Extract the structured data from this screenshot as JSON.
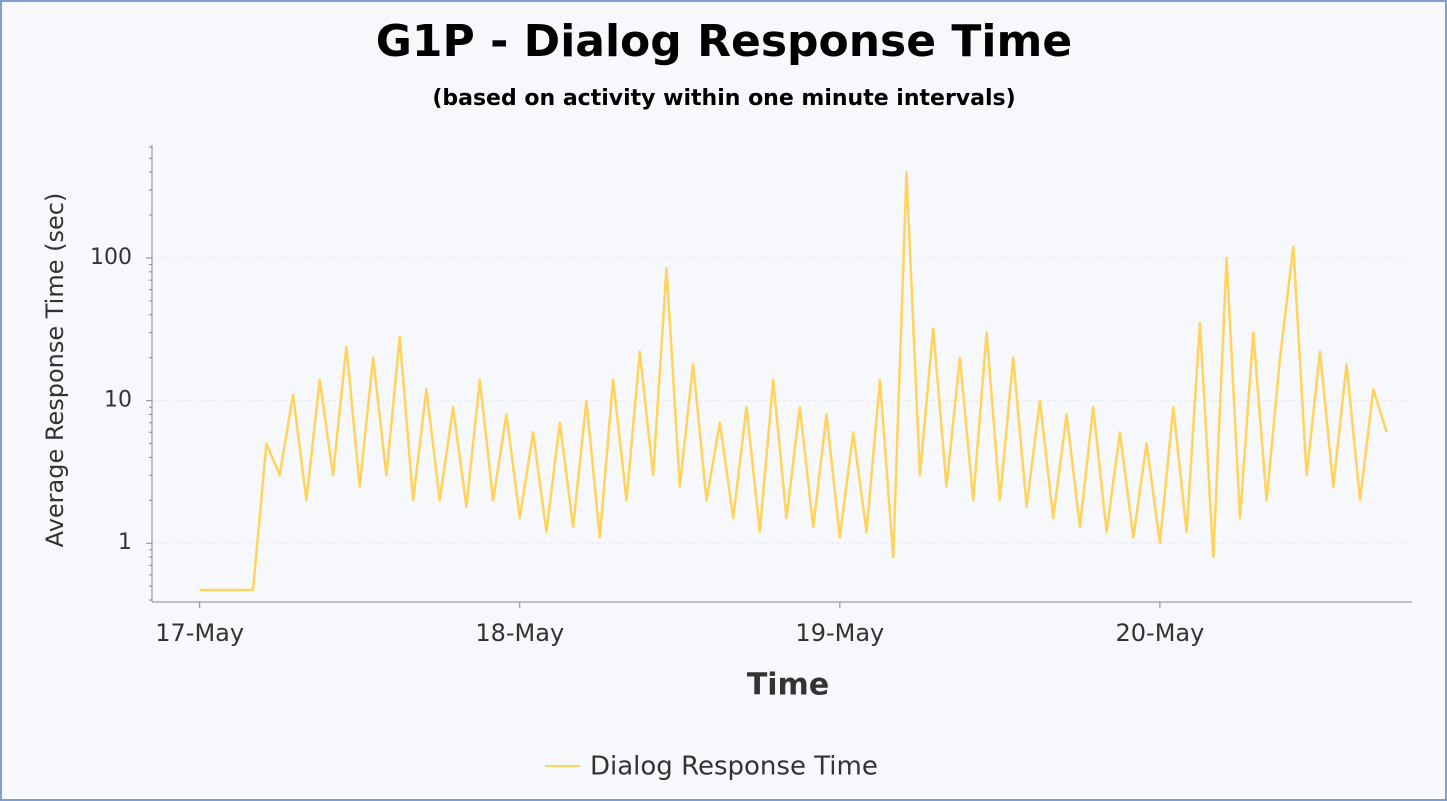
{
  "chart_data": {
    "type": "line",
    "title": "G1P - Dialog Response Time",
    "subtitle": "(based on activity within one minute intervals)",
    "x_label": "Time",
    "y_label": "Average Response Time (sec)",
    "categories": [
      "17-May",
      null,
      null,
      null,
      null,
      null,
      null,
      null,
      null,
      null,
      null,
      null,
      null,
      null,
      null,
      null,
      null,
      null,
      null,
      null,
      null,
      null,
      null,
      null,
      "18-May",
      null,
      null,
      null,
      null,
      null,
      null,
      null,
      null,
      null,
      null,
      null,
      null,
      null,
      null,
      null,
      null,
      null,
      null,
      null,
      null,
      null,
      null,
      null,
      "19-May",
      null,
      null,
      null,
      null,
      null,
      null,
      null,
      null,
      null,
      null,
      null,
      null,
      null,
      null,
      null,
      null,
      null,
      null,
      null,
      null,
      null,
      null,
      null,
      "20-May",
      null,
      null,
      null,
      null,
      null,
      null,
      null,
      null,
      null,
      null,
      null,
      null,
      null,
      null,
      null,
      null,
      null
    ],
    "series": [
      {
        "name": "Dialog Response Time",
        "color": "#ffd35c",
        "values": [
          0.47,
          0.47,
          0.47,
          0.47,
          0.47,
          5,
          3,
          11,
          2,
          14,
          3,
          24,
          2.5,
          20,
          3,
          28,
          2,
          12,
          2,
          9,
          1.8,
          14,
          2,
          8,
          1.5,
          6,
          1.2,
          7,
          1.3,
          10,
          1.1,
          14,
          2,
          22,
          3,
          85,
          2.5,
          18,
          2,
          7,
          1.5,
          9,
          1.2,
          14,
          1.5,
          9,
          1.3,
          8,
          1.1,
          6,
          1.2,
          14,
          0.8,
          400,
          3,
          32,
          2.5,
          20,
          2,
          30,
          2,
          20,
          1.8,
          10,
          1.5,
          8,
          1.3,
          9,
          1.2,
          6,
          1.1,
          5,
          1.0,
          9,
          1.2,
          35,
          0.8,
          100,
          1.5,
          30,
          2,
          20,
          120,
          3,
          22,
          2.5,
          18,
          2,
          12,
          6
        ]
      }
    ],
    "xlim": [
      -2.6,
      90.75
    ],
    "ylim": [
      0.4,
      620
    ],
    "yticks": [
      1,
      10,
      100
    ],
    "log_y": true,
    "grid": true,
    "legend": "bottom"
  }
}
